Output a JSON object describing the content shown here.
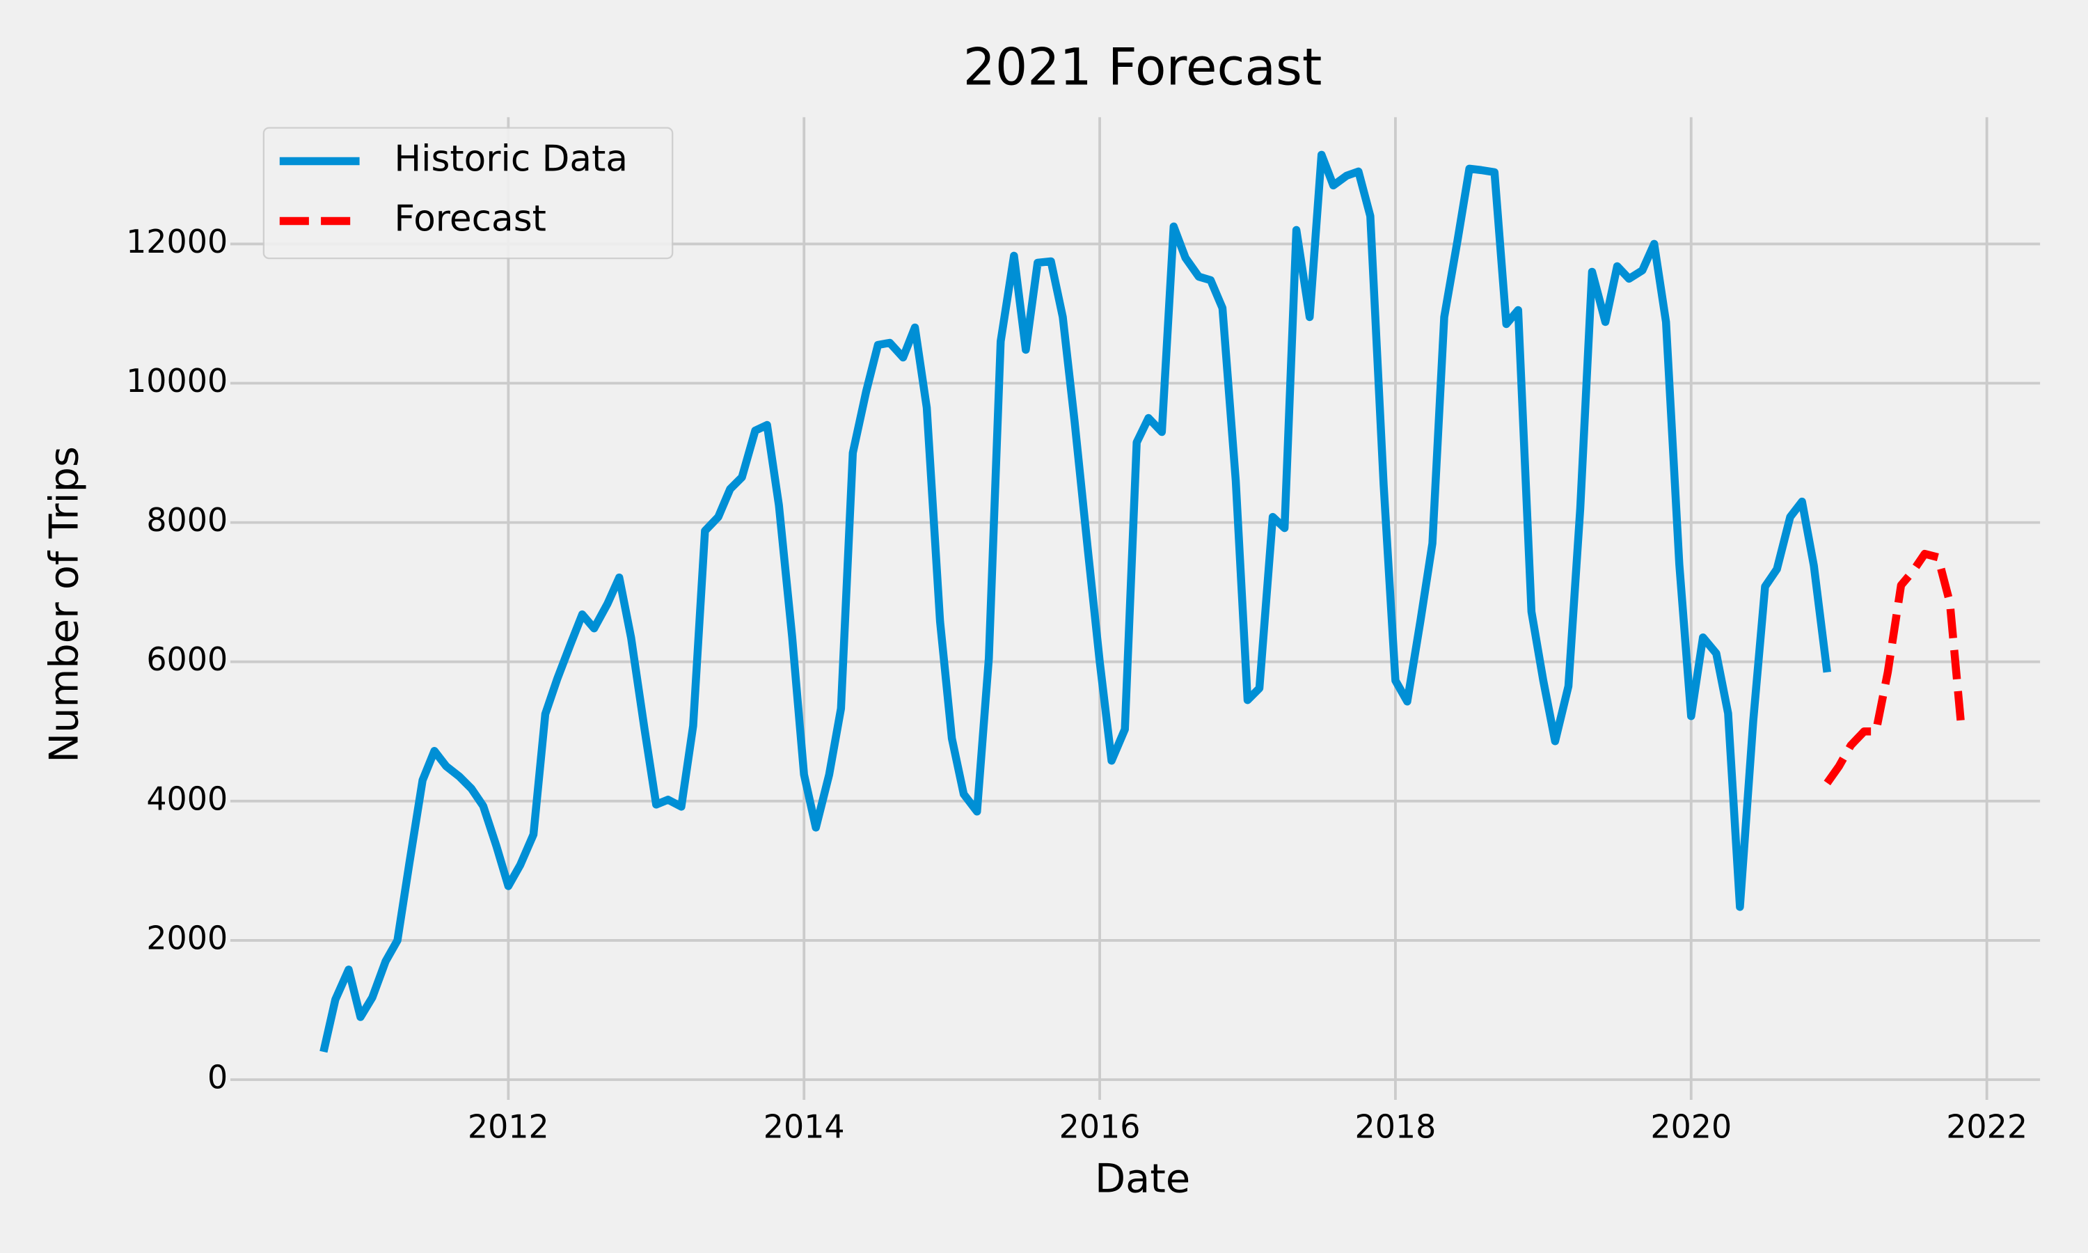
{
  "chart_data": {
    "type": "line",
    "title": "2021 Forecast",
    "xlabel": "Date",
    "ylabel": "Number of Trips",
    "xlim": [
      2010.12,
      2022.36
    ],
    "xticks": [
      2012,
      2014,
      2016,
      2018,
      2020,
      2022
    ],
    "ylim": [
      -290,
      13820
    ],
    "yticks": [
      0,
      2000,
      4000,
      6000,
      8000,
      10000,
      12000
    ],
    "grid": true,
    "legend": "upper left",
    "series": [
      {
        "name": "Historic Data",
        "color": "#008fd5",
        "style": "solid",
        "x": [
          2010.75,
          2010.83,
          2010.92,
          2011.0,
          2011.08,
          2011.17,
          2011.25,
          2011.33,
          2011.42,
          2011.5,
          2011.58,
          2011.67,
          2011.75,
          2011.83,
          2011.92,
          2012.0,
          2012.08,
          2012.17,
          2012.25,
          2012.33,
          2012.42,
          2012.5,
          2012.58,
          2012.67,
          2012.75,
          2012.83,
          2012.92,
          2013.0,
          2013.08,
          2013.17,
          2013.25,
          2013.33,
          2013.42,
          2013.5,
          2013.58,
          2013.67,
          2013.75,
          2013.83,
          2013.92,
          2014.0,
          2014.08,
          2014.17,
          2014.25,
          2014.33,
          2014.42,
          2014.5,
          2014.58,
          2014.67,
          2014.75,
          2014.83,
          2014.92,
          2015.0,
          2015.08,
          2015.17,
          2015.25,
          2015.33,
          2015.42,
          2015.5,
          2015.58,
          2015.67,
          2015.75,
          2015.83,
          2015.92,
          2016.0,
          2016.08,
          2016.17,
          2016.25,
          2016.33,
          2016.42,
          2016.5,
          2016.58,
          2016.67,
          2016.75,
          2016.83,
          2016.92,
          2017.0,
          2017.08,
          2017.17,
          2017.25,
          2017.33,
          2017.42,
          2017.5,
          2017.58,
          2017.67,
          2017.75,
          2017.83,
          2017.92,
          2018.0,
          2018.08,
          2018.17,
          2018.25,
          2018.33,
          2018.42,
          2018.5,
          2018.58,
          2018.67,
          2018.75,
          2018.83,
          2018.92,
          2019.0,
          2019.08,
          2019.17,
          2019.25,
          2019.33,
          2019.42,
          2019.5,
          2019.58,
          2019.67,
          2019.75,
          2019.83,
          2019.92,
          2020.0,
          2020.08,
          2020.17,
          2020.25,
          2020.33,
          2020.42,
          2020.5,
          2020.58,
          2020.67,
          2020.75,
          2020.83,
          2020.92
        ],
        "values": [
          400,
          1150,
          1580,
          900,
          1180,
          1700,
          2000,
          3100,
          4300,
          4720,
          4500,
          4350,
          4180,
          3930,
          3350,
          2780,
          3080,
          3520,
          5250,
          5750,
          6250,
          6680,
          6480,
          6830,
          7210,
          6350,
          5050,
          3950,
          4020,
          3920,
          5080,
          7880,
          8080,
          8480,
          8650,
          9320,
          9400,
          8250,
          6350,
          4380,
          3620,
          4380,
          5330,
          9000,
          9880,
          10550,
          10580,
          10370,
          10800,
          9650,
          6580,
          4900,
          4100,
          3850,
          6050,
          10600,
          11830,
          10480,
          11730,
          11750,
          10950,
          9450,
          7600,
          6000,
          4580,
          5030,
          9150,
          9500,
          9300,
          12250,
          11800,
          11530,
          11480,
          11080,
          8600,
          5450,
          5620,
          8080,
          7920,
          12200,
          10950,
          13280,
          12840,
          12980,
          13040,
          12400,
          8550,
          5730,
          5430,
          6600,
          7700,
          10950,
          12050,
          13080,
          13060,
          13030,
          10850,
          11050,
          6720,
          5730,
          4860,
          5650,
          8200,
          11600,
          10880,
          11680,
          11500,
          11620,
          12000,
          10880,
          7400,
          5220,
          6350,
          6120,
          5260,
          2480,
          5150,
          7080,
          7330,
          8080,
          8300,
          7380,
          5850
        ]
      },
      {
        "name": "Forecast",
        "color": "#ff0000",
        "style": "dashed",
        "x": [
          2020.92,
          2021.0,
          2021.08,
          2021.17,
          2021.25,
          2021.33,
          2021.42,
          2021.5,
          2021.58,
          2021.67,
          2021.75,
          2021.83
        ],
        "values": [
          4260,
          4500,
          4800,
          5000,
          5000,
          5850,
          7100,
          7300,
          7550,
          7500,
          6850,
          5000
        ]
      }
    ]
  }
}
